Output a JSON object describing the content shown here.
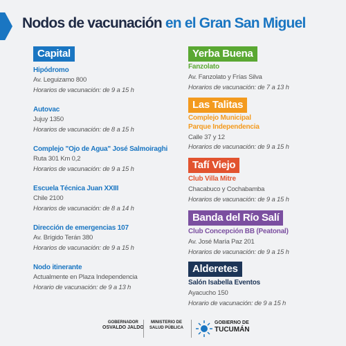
{
  "header": {
    "title_part1": "Nodos de vacunación",
    "title_part2": "en el Gran San Miguel"
  },
  "sections": [
    {
      "title": "Capital",
      "entries": [
        {
          "name": [
            "Hipódromo"
          ],
          "address": "Av. Leguizamo 800",
          "schedule_label": "Horarios de vacunación:",
          "schedule_time": "de 9 a 15 h"
        },
        {
          "name": [
            "Autovac"
          ],
          "address": "Jujuy 1350",
          "schedule_label": "Horarios de vacunación:",
          "schedule_time": "de 8 a 15 h"
        },
        {
          "name": [
            "Complejo \"Ojo de Agua\" José Salmoiraghi"
          ],
          "address": "Ruta 301 Km 0,2",
          "schedule_label": "Horarios de vacunación:",
          "schedule_time": "de 9 a 15 h"
        },
        {
          "name": [
            "Escuela Técnica Juan XXIII"
          ],
          "address": "Chile 2100",
          "schedule_label": "Horarios de vacunación:",
          "schedule_time": "de 8 a 14 h"
        },
        {
          "name": [
            "Dirección de emergencias 107"
          ],
          "address": "Av. Brígido Terán 380",
          "schedule_label": "Horarios de vacunación:",
          "schedule_time": "de 9 a 15 h"
        },
        {
          "name": [
            "Nodo itinerante"
          ],
          "address": "Actualmente en Plaza Independencia",
          "schedule_label": "Horario de vacunación:",
          "schedule_time": "de 9 a 13 h"
        }
      ]
    },
    {
      "title": "Yerba Buena",
      "entries": [
        {
          "name": [
            "Fanzolato"
          ],
          "address": "Av. Fanzolato y Frías Silva",
          "schedule_label": "Horarios de vacunación:",
          "schedule_time": "de 7 a 13 h"
        }
      ]
    },
    {
      "title": "Las Talitas",
      "entries": [
        {
          "name": [
            "Complejo Municipal",
            "Parque Independencia"
          ],
          "address": "Calle 37 y 12",
          "schedule_label": "Horarios de vacunación:",
          "schedule_time": "de 9 a 15 h"
        }
      ]
    },
    {
      "title": "Tafí Viejo",
      "entries": [
        {
          "name": [
            "Club Villa Mitre"
          ],
          "address": "Chacabuco y Cochabamba",
          "schedule_label": "Horarios de vacunación:",
          "schedule_time": "de 9 a 15 h"
        }
      ]
    },
    {
      "title": "Banda del Río Salí",
      "entries": [
        {
          "name": [
            "Club Concepción BB  (Peatonal)"
          ],
          "address": "Av. José María Paz 201",
          "schedule_label": "Horarios de vacunación:",
          "schedule_time": "de 9 a 15 h"
        }
      ]
    },
    {
      "title": "Alderetes",
      "entries": [
        {
          "name": [
            "Salón Isabella Eventos"
          ],
          "address": "Ayacucho 150",
          "schedule_label": "Horario de vacunación:",
          "schedule_time": "de 9 a 15 h"
        }
      ]
    }
  ],
  "footer": {
    "governor_role": "GOBERNADOR",
    "governor_name": "OSVALDO JALDO",
    "ministry_line1": "MINISTERIO DE",
    "ministry_line2": "SALUD PÚBLICA",
    "gov_line1": "GOBIERNO DE",
    "gov_line2": "TUCUMÁN"
  }
}
